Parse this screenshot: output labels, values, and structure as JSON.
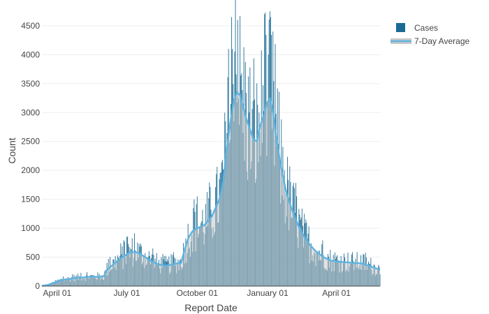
{
  "chart_data": {
    "type": "bar",
    "xlabel": "Report Date",
    "ylabel": "Count",
    "x_range": [
      "2020-03-12",
      "2021-05-28"
    ],
    "ylim": [
      0,
      4800
    ],
    "y_ticks": [
      0,
      500,
      1000,
      1500,
      2000,
      2500,
      3000,
      3500,
      4000,
      4500
    ],
    "x_ticks": [
      {
        "date": "2020-04-01",
        "label": "April 01"
      },
      {
        "date": "2020-07-01",
        "label": "July 01"
      },
      {
        "date": "2020-10-01",
        "label": "October 01"
      },
      {
        "date": "2021-01-01",
        "label": "January 01"
      },
      {
        "date": "2021-04-01",
        "label": "April 01"
      }
    ],
    "grid": "horizontal",
    "legend_position": "top-right",
    "colors": {
      "cases": "#1b6a94",
      "average_line": "#5fb4e0",
      "average_fill": "#c8c8c8"
    },
    "series": [
      {
        "name": "Cases",
        "type": "bar",
        "frequency": "daily"
      },
      {
        "name": "7-Day Average",
        "type": "line",
        "points": [
          [
            "2020-03-12",
            5
          ],
          [
            "2020-03-20",
            20
          ],
          [
            "2020-03-28",
            60
          ],
          [
            "2020-04-05",
            100
          ],
          [
            "2020-04-15",
            120
          ],
          [
            "2020-04-25",
            140
          ],
          [
            "2020-05-05",
            150
          ],
          [
            "2020-05-15",
            160
          ],
          [
            "2020-05-25",
            160
          ],
          [
            "2020-06-01",
            170
          ],
          [
            "2020-06-05",
            280
          ],
          [
            "2020-06-12",
            360
          ],
          [
            "2020-06-20",
            450
          ],
          [
            "2020-06-28",
            520
          ],
          [
            "2020-07-05",
            580
          ],
          [
            "2020-07-12",
            590
          ],
          [
            "2020-07-18",
            560
          ],
          [
            "2020-07-25",
            500
          ],
          [
            "2020-08-01",
            440
          ],
          [
            "2020-08-10",
            380
          ],
          [
            "2020-08-20",
            350
          ],
          [
            "2020-08-28",
            370
          ],
          [
            "2020-09-05",
            390
          ],
          [
            "2020-09-10",
            400
          ],
          [
            "2020-09-15",
            650
          ],
          [
            "2020-09-20",
            850
          ],
          [
            "2020-09-25",
            950
          ],
          [
            "2020-10-01",
            1000
          ],
          [
            "2020-10-10",
            1050
          ],
          [
            "2020-10-20",
            1200
          ],
          [
            "2020-10-25",
            1350
          ],
          [
            "2020-10-30",
            1500
          ],
          [
            "2020-11-04",
            1800
          ],
          [
            "2020-11-08",
            2300
          ],
          [
            "2020-11-13",
            2800
          ],
          [
            "2020-11-18",
            3200
          ],
          [
            "2020-11-22",
            3350
          ],
          [
            "2020-11-26",
            3300
          ],
          [
            "2020-11-30",
            3100
          ],
          [
            "2020-12-04",
            2900
          ],
          [
            "2020-12-08",
            2750
          ],
          [
            "2020-12-13",
            2550
          ],
          [
            "2020-12-18",
            2500
          ],
          [
            "2020-12-22",
            2750
          ],
          [
            "2020-12-27",
            2950
          ],
          [
            "2020-12-31",
            3150
          ],
          [
            "2021-01-04",
            3250
          ],
          [
            "2021-01-08",
            3000
          ],
          [
            "2021-01-12",
            2600
          ],
          [
            "2021-01-18",
            2100
          ],
          [
            "2021-01-25",
            1650
          ],
          [
            "2021-02-01",
            1350
          ],
          [
            "2021-02-10",
            1050
          ],
          [
            "2021-02-18",
            850
          ],
          [
            "2021-02-25",
            720
          ],
          [
            "2021-03-05",
            600
          ],
          [
            "2021-03-15",
            500
          ],
          [
            "2021-03-25",
            440
          ],
          [
            "2021-04-05",
            420
          ],
          [
            "2021-04-15",
            410
          ],
          [
            "2021-04-25",
            400
          ],
          [
            "2021-05-05",
            390
          ],
          [
            "2021-05-12",
            360
          ],
          [
            "2021-05-20",
            320
          ],
          [
            "2021-05-28",
            280
          ]
        ]
      }
    ]
  }
}
